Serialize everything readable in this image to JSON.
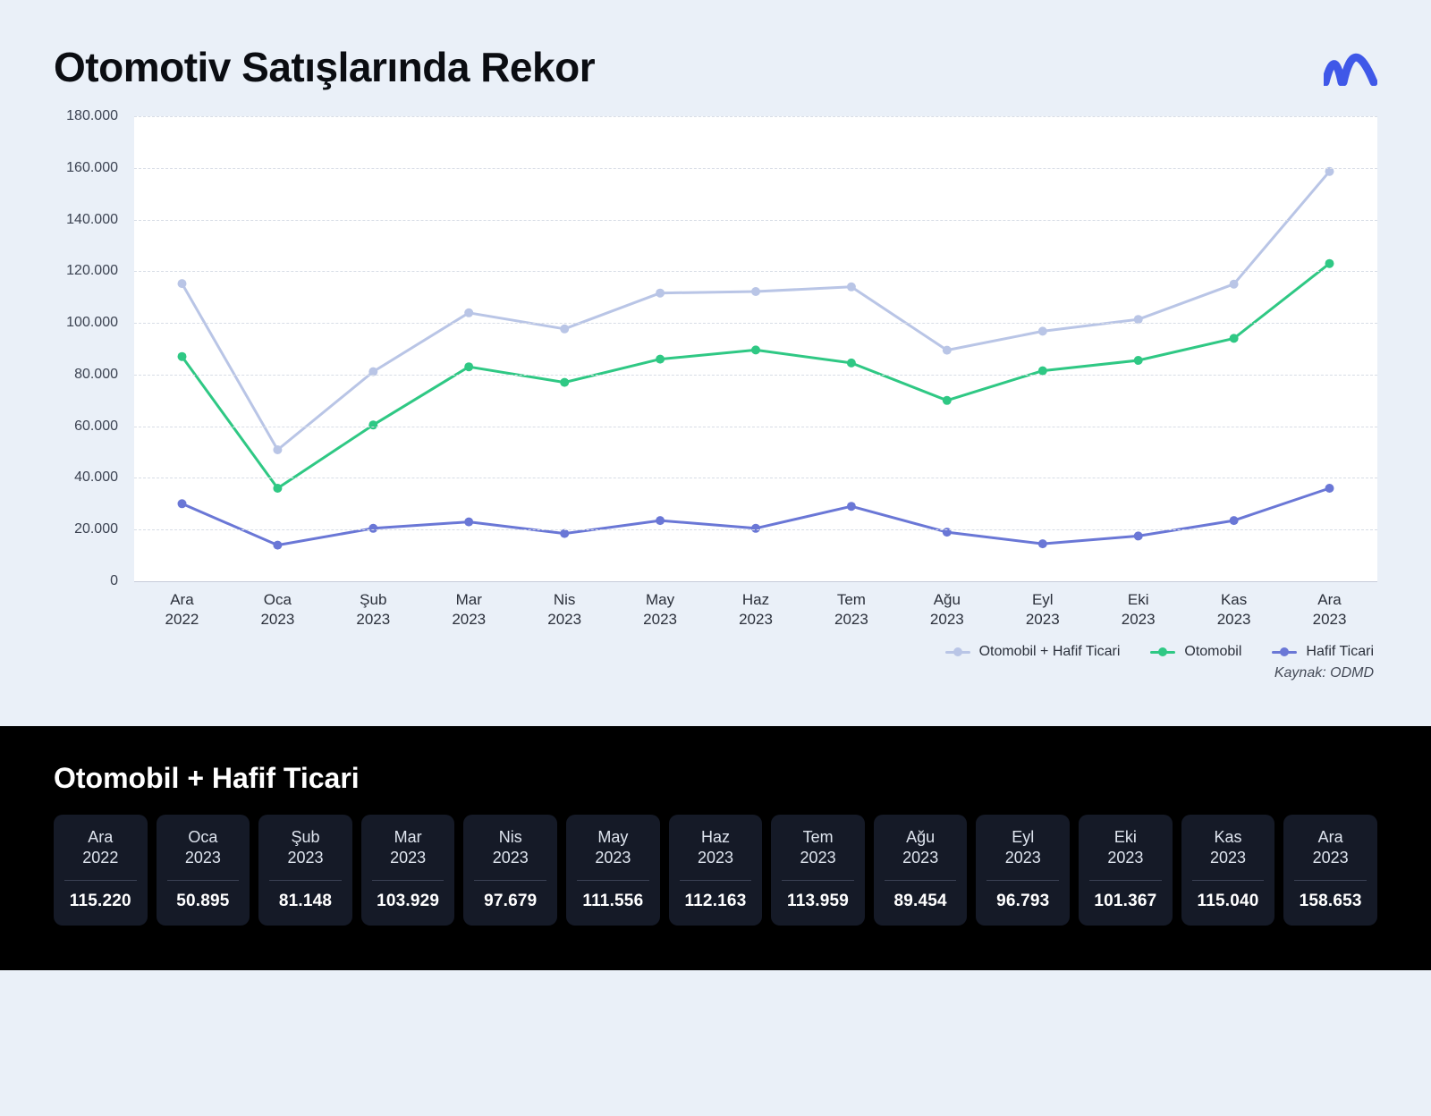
{
  "title": "Otomotiv Satışlarında Rekor",
  "source": "Kaynak: ODMD",
  "logo_color": "#3f58e8",
  "chart": {
    "type": "line",
    "background_color": "#ffffff",
    "page_background": "#eaf0f8",
    "grid_color": "#d8dde6",
    "axis_text_color": "#3b4251",
    "categories": [
      {
        "m": "Ara",
        "y": "2022"
      },
      {
        "m": "Oca",
        "y": "2023"
      },
      {
        "m": "Şub",
        "y": "2023"
      },
      {
        "m": "Mar",
        "y": "2023"
      },
      {
        "m": "Nis",
        "y": "2023"
      },
      {
        "m": "May",
        "y": "2023"
      },
      {
        "m": "Haz",
        "y": "2023"
      },
      {
        "m": "Tem",
        "y": "2023"
      },
      {
        "m": "Ağu",
        "y": "2023"
      },
      {
        "m": "Eyl",
        "y": "2023"
      },
      {
        "m": "Eki",
        "y": "2023"
      },
      {
        "m": "Kas",
        "y": "2023"
      },
      {
        "m": "Ara",
        "y": "2023"
      }
    ],
    "ylim": [
      0,
      180000
    ],
    "ytick_step": 20000,
    "ytick_labels": [
      "0",
      "20.000",
      "40.000",
      "60.000",
      "80.000",
      "100.000",
      "120.000",
      "140.000",
      "160.000",
      "180.000"
    ],
    "line_width": 3,
    "marker_radius": 5,
    "series": [
      {
        "name": "Otomobil + Hafif Ticari",
        "color": "#b9c5e6",
        "values": [
          115220,
          50895,
          81148,
          103929,
          97679,
          111556,
          112163,
          113959,
          89454,
          96793,
          101367,
          115040,
          158653
        ]
      },
      {
        "name": "Otomobil",
        "color": "#2fc884",
        "values": [
          87000,
          36000,
          60500,
          83000,
          77000,
          86000,
          89500,
          84500,
          70000,
          81500,
          85500,
          94000,
          123000
        ]
      },
      {
        "name": "Hafif Ticari",
        "color": "#6a77d6",
        "values": [
          30000,
          14000,
          20500,
          23000,
          18500,
          23500,
          20500,
          29000,
          19000,
          14500,
          17500,
          23500,
          36000
        ]
      }
    ]
  },
  "table": {
    "title": "Otomobil + Hafif Ticari",
    "background": "#000000",
    "card_background": "#151a27",
    "card_text": "#ffffff",
    "rows": [
      {
        "m": "Ara",
        "y": "2022",
        "v": "115.220"
      },
      {
        "m": "Oca",
        "y": "2023",
        "v": "50.895"
      },
      {
        "m": "Şub",
        "y": "2023",
        "v": "81.148"
      },
      {
        "m": "Mar",
        "y": "2023",
        "v": "103.929"
      },
      {
        "m": "Nis",
        "y": "2023",
        "v": "97.679"
      },
      {
        "m": "May",
        "y": "2023",
        "v": "111.556"
      },
      {
        "m": "Haz",
        "y": "2023",
        "v": "112.163"
      },
      {
        "m": "Tem",
        "y": "2023",
        "v": "113.959"
      },
      {
        "m": "Ağu",
        "y": "2023",
        "v": "89.454"
      },
      {
        "m": "Eyl",
        "y": "2023",
        "v": "96.793"
      },
      {
        "m": "Eki",
        "y": "2023",
        "v": "101.367"
      },
      {
        "m": "Kas",
        "y": "2023",
        "v": "115.040"
      },
      {
        "m": "Ara",
        "y": "2023",
        "v": "158.653"
      }
    ]
  }
}
